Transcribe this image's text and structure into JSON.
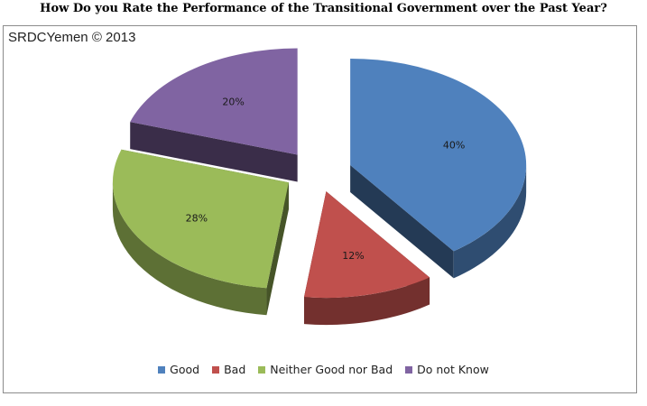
{
  "chart_data": {
    "type": "pie",
    "title": "How Do you Rate the Performance of the Transitional Government over the Past Year?",
    "watermark": "SRDCYemen © 2013",
    "categories": [
      "Good",
      "Bad",
      "Neither Good nor Bad",
      "Do not Know"
    ],
    "values": [
      40,
      12,
      28,
      20
    ],
    "value_labels": [
      "40%",
      "12%",
      "28%",
      "20%"
    ],
    "colors": [
      "#4f81bd",
      "#c0504d",
      "#9bbb59",
      "#8064a2"
    ],
    "exploded": true,
    "three_d": true,
    "legend_position": "bottom"
  }
}
